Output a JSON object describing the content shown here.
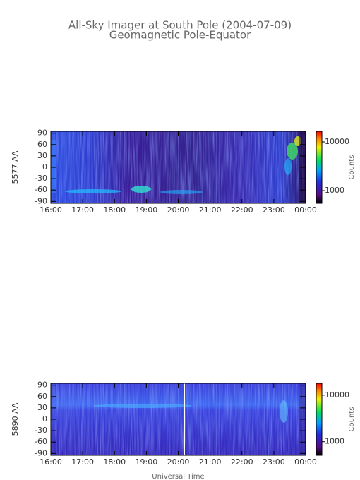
{
  "title": "All-Sky Imager at South Pole (2004-07-09)",
  "subtitle": "Geomagnetic Pole-Equator",
  "chart_data": [
    {
      "type": "heatmap",
      "ylabel": "5577 AA",
      "colorbar_label": "Counts",
      "xlim": [
        16,
        24
      ],
      "xticks": [
        {
          "value": 16,
          "label": "16:00"
        },
        {
          "value": 17,
          "label": "17:00"
        },
        {
          "value": 18,
          "label": "18:00"
        },
        {
          "value": 19,
          "label": "19:00"
        },
        {
          "value": 20,
          "label": "20:00"
        },
        {
          "value": 21,
          "label": "21:00"
        },
        {
          "value": 22,
          "label": "22:00"
        },
        {
          "value": 23,
          "label": "23:00"
        },
        {
          "value": 24,
          "label": "00:00"
        }
      ],
      "ylim": [
        -95,
        95
      ],
      "yticks": [
        -90,
        -60,
        -30,
        0,
        30,
        60,
        90
      ],
      "clim": [
        550,
        16500
      ],
      "cticks": [
        1000,
        10000
      ],
      "color_log": true
    },
    {
      "type": "heatmap",
      "ylabel": "5890 AA",
      "colorbar_label": "Counts",
      "xlabel": "Universal Time",
      "xlim": [
        16,
        24
      ],
      "xticks": [
        {
          "value": 16,
          "label": "16:00"
        },
        {
          "value": 17,
          "label": "17:00"
        },
        {
          "value": 18,
          "label": "18:00"
        },
        {
          "value": 19,
          "label": "19:00"
        },
        {
          "value": 20,
          "label": "20:00"
        },
        {
          "value": 21,
          "label": "21:00"
        },
        {
          "value": 22,
          "label": "22:00"
        },
        {
          "value": 23,
          "label": "23:00"
        },
        {
          "value": 24,
          "label": "00:00"
        }
      ],
      "ylim": [
        -95,
        95
      ],
      "yticks": [
        -90,
        -60,
        -30,
        0,
        30,
        60,
        90
      ],
      "clim": [
        510,
        18000
      ],
      "cticks": [
        1000,
        10000
      ],
      "color_log": true
    }
  ]
}
